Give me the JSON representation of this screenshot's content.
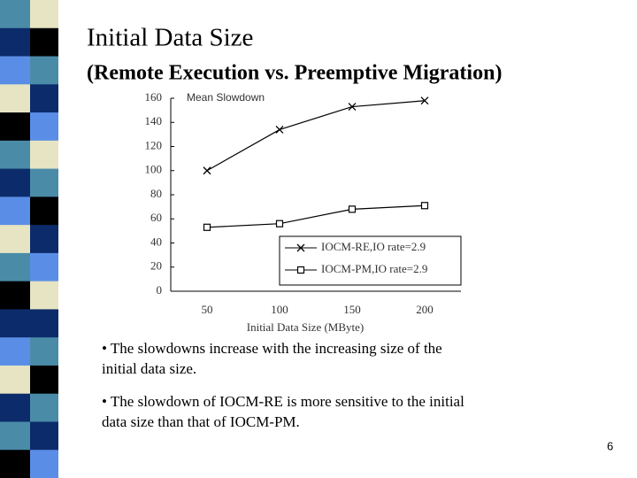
{
  "title": "Initial Data Size",
  "subtitle": "(Remote Execution vs. Preemptive Migration)",
  "bullets": [
    [
      "• The slowdowns increase with the increasing size of the",
      "initial data size."
    ],
    [
      "• The slowdown of IOCM-RE is more sensitive to the initial",
      "data size than that of IOCM-PM."
    ]
  ],
  "page_number": "6",
  "chart_data": {
    "type": "line",
    "y_label": "Mean Slowdown",
    "x_label": "Initial Data Size (MByte)",
    "categories": [
      "50",
      "100",
      "150",
      "200"
    ],
    "series": [
      {
        "name": "IOCM-RE,IO rate=2.9",
        "color": "#000000",
        "marker": "x",
        "values": [
          100,
          134,
          153,
          158
        ]
      },
      {
        "name": "IOCM-PM,IO rate=2.9",
        "color": "#000000",
        "marker": "square",
        "values": [
          53,
          56,
          68,
          71
        ]
      }
    ],
    "ylim": [
      0,
      160
    ],
    "yticks": [
      0,
      20,
      40,
      60,
      80,
      100,
      120,
      140,
      160
    ],
    "legend": "lower right"
  }
}
